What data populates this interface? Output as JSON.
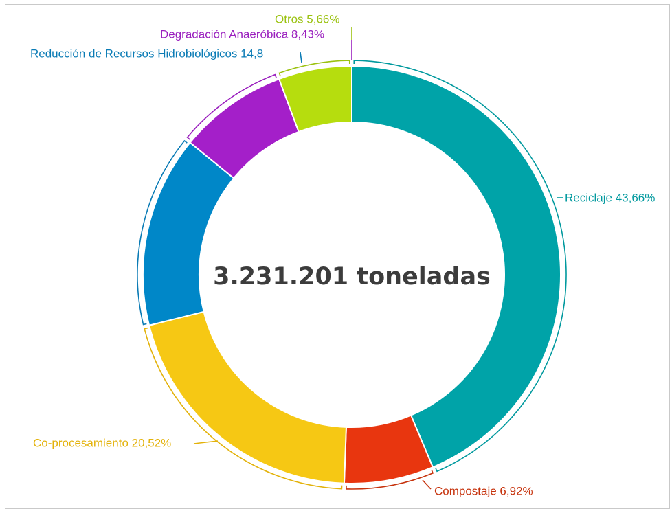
{
  "chart_data": {
    "type": "pie",
    "variant": "donut",
    "center_label": "3.231.201 toneladas",
    "slices": [
      {
        "name": "Reciclaje",
        "value": 43.66,
        "label": "Reciclaje 43,66%",
        "color": "#00A3A8"
      },
      {
        "name": "Compostaje",
        "value": 6.92,
        "label": "Compostaje 6,92%",
        "color": "#E8360F"
      },
      {
        "name": "Co-procesamiento",
        "value": 20.52,
        "label": "Co-procesamiento 20,52%",
        "color": "#F6C814"
      },
      {
        "name": "Reducción de Recursos Hidrobiológicos",
        "value": 14.81,
        "label": "Reducción de Recursos Hidrobiológicos 14,8",
        "color": "#0087C8"
      },
      {
        "name": "Degradación Anaeróbica",
        "value": 8.43,
        "label": "Degradación Anaeróbica 8,43%",
        "color": "#A41FC9"
      },
      {
        "name": "Otros",
        "value": 5.66,
        "label": "Otros 5,66%",
        "color": "#B6DD0E"
      }
    ],
    "label_colors": {
      "Reciclaje": "#00999E",
      "Compostaje": "#C6320C",
      "Co-procesamiento": "#E3B20A",
      "Reducción de Recursos Hidrobiológicos": "#0A7BB5",
      "Degradación Anaeróbica": "#9A1FBE",
      "Otros": "#9BC210"
    }
  }
}
